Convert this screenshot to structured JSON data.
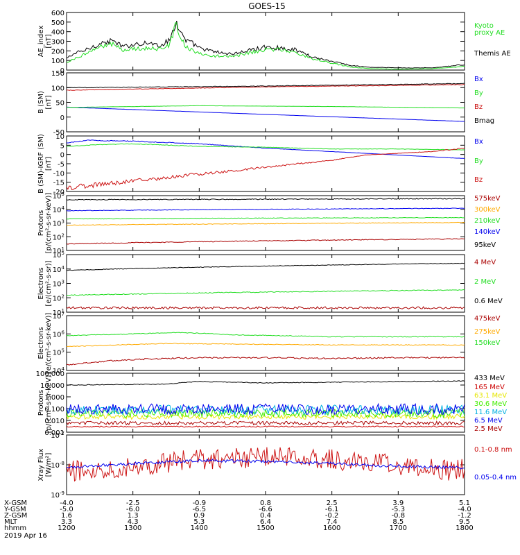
{
  "title": "GOES-15",
  "colors": {
    "black": "#000000",
    "green": "#22dd22",
    "blue": "#0000ee",
    "red": "#cc1111",
    "orange": "#ffaa00",
    "yellow": "#e6e600",
    "cyan": "#00b0e0",
    "lime": "#44ee00",
    "darkred": "#aa0000",
    "crimson": "#cc0000"
  },
  "footer": {
    "row_labels": [
      "X-GSM",
      "Y-GSM",
      "Z-GSM",
      "MLT",
      "hhmm"
    ],
    "date": "2019 Apr 16",
    "columns": [
      {
        "x_gsm": "-4.0",
        "y_gsm": "-5.0",
        "z_gsm": "1.6",
        "mlt": "3.3",
        "hhmm": "1200"
      },
      {
        "x_gsm": "-2.5",
        "y_gsm": "-6.0",
        "z_gsm": "1.3",
        "mlt": "4.3",
        "hhmm": "1300"
      },
      {
        "x_gsm": "-0.9",
        "y_gsm": "-6.5",
        "z_gsm": "0.9",
        "mlt": "5.3",
        "hhmm": "1400"
      },
      {
        "x_gsm": "0.8",
        "y_gsm": "-6.6",
        "z_gsm": "0.4",
        "mlt": "6.4",
        "hhmm": "1500"
      },
      {
        "x_gsm": "2.5",
        "y_gsm": "-6.1",
        "z_gsm": "-0.2",
        "mlt": "7.4",
        "hhmm": "1600"
      },
      {
        "x_gsm": "3.9",
        "y_gsm": "-5.3",
        "z_gsm": "-0.8",
        "mlt": "8.5",
        "hhmm": "1700"
      },
      {
        "x_gsm": "5.1",
        "y_gsm": "-4.0",
        "z_gsm": "-1.2",
        "mlt": "9.5",
        "hhmm": "1800"
      }
    ]
  },
  "chart_data": [
    {
      "type": "line",
      "ylabel": "AE_index [nT]",
      "ylim": [
        0,
        650
      ],
      "yscale": "linear",
      "yticks": [
        "0",
        "100",
        "200",
        "300",
        "400",
        "500",
        "600"
      ],
      "x_hours": [
        12,
        18
      ],
      "series": [
        {
          "name": "Themis AE",
          "color": "black",
          "noise": 0.1,
          "points": [
            [
              12.0,
              130
            ],
            [
              12.1,
              180
            ],
            [
              12.3,
              230
            ],
            [
              12.5,
              300
            ],
            [
              12.7,
              330
            ],
            [
              12.85,
              260
            ],
            [
              13.0,
              290
            ],
            [
              13.2,
              310
            ],
            [
              13.4,
              280
            ],
            [
              13.55,
              330
            ],
            [
              13.65,
              550
            ],
            [
              13.72,
              420
            ],
            [
              13.8,
              330
            ],
            [
              13.9,
              300
            ],
            [
              14.0,
              250
            ],
            [
              14.2,
              210
            ],
            [
              14.5,
              180
            ],
            [
              14.8,
              230
            ],
            [
              15.0,
              260
            ],
            [
              15.2,
              250
            ],
            [
              15.45,
              230
            ],
            [
              15.7,
              150
            ],
            [
              16.0,
              100
            ],
            [
              16.3,
              50
            ],
            [
              16.6,
              30
            ],
            [
              17.0,
              25
            ],
            [
              17.5,
              25
            ],
            [
              18.0,
              60
            ]
          ]
        },
        {
          "name": "Kyoto proxy AE",
          "color": "green",
          "noise": 0.1,
          "points": [
            [
              12.0,
              90
            ],
            [
              12.1,
              120
            ],
            [
              12.3,
              190
            ],
            [
              12.5,
              260
            ],
            [
              12.7,
              290
            ],
            [
              12.85,
              230
            ],
            [
              13.0,
              240
            ],
            [
              13.2,
              250
            ],
            [
              13.4,
              230
            ],
            [
              13.55,
              280
            ],
            [
              13.65,
              510
            ],
            [
              13.72,
              380
            ],
            [
              13.8,
              260
            ],
            [
              13.9,
              220
            ],
            [
              14.0,
              190
            ],
            [
              14.2,
              160
            ],
            [
              14.5,
              150
            ],
            [
              14.8,
              200
            ],
            [
              15.0,
              230
            ],
            [
              15.2,
              230
            ],
            [
              15.45,
              200
            ],
            [
              15.7,
              130
            ],
            [
              16.0,
              80
            ],
            [
              16.3,
              30
            ],
            [
              16.6,
              15
            ],
            [
              17.0,
              10
            ],
            [
              17.5,
              15
            ],
            [
              18.0,
              40
            ]
          ]
        }
      ]
    },
    {
      "type": "line",
      "ylabel": "B (SM) [nT]",
      "ylim": [
        -60,
        150
      ],
      "yscale": "linear",
      "yticks": [
        "-50",
        "0",
        "50",
        "100",
        "150"
      ],
      "x_hours": [
        12,
        18
      ],
      "series": [
        {
          "name": "Bx",
          "color": "blue",
          "noise": 0.01,
          "points": [
            [
              12.0,
              28
            ],
            [
              15.0,
              2
            ],
            [
              18.0,
              -23
            ]
          ]
        },
        {
          "name": "By",
          "color": "green",
          "noise": 0.01,
          "points": [
            [
              12.0,
              27
            ],
            [
              14.0,
              33
            ],
            [
              16.0,
              30
            ],
            [
              18.0,
              25
            ]
          ]
        },
        {
          "name": "Bz",
          "color": "red",
          "noise": 0.01,
          "points": [
            [
              12.0,
              88
            ],
            [
              15.0,
              100
            ],
            [
              18.0,
              108
            ]
          ]
        },
        {
          "name": "Bmag",
          "color": "black",
          "noise": 0.01,
          "points": [
            [
              12.0,
              97
            ],
            [
              15.0,
              103
            ],
            [
              18.0,
              112
            ]
          ]
        }
      ]
    },
    {
      "type": "line",
      "ylabel": "B (SM)-IGRF (SM) [nT]",
      "ylim": [
        -21,
        11
      ],
      "yscale": "linear",
      "yticks": [
        "-20",
        "-15",
        "-10",
        "-5",
        "0",
        "5",
        "10"
      ],
      "x_hours": [
        12,
        18
      ],
      "series": [
        {
          "name": "Bx",
          "color": "blue",
          "noise": 0.03,
          "points": [
            [
              12.0,
              7
            ],
            [
              12.3,
              8.5
            ],
            [
              13.0,
              8
            ],
            [
              14.0,
              6.5
            ],
            [
              15.0,
              4
            ],
            [
              16.0,
              2
            ],
            [
              17.0,
              0
            ],
            [
              18.0,
              -2
            ]
          ]
        },
        {
          "name": "By",
          "color": "green",
          "noise": 0.03,
          "points": [
            [
              12.0,
              5
            ],
            [
              12.5,
              6
            ],
            [
              13.0,
              6.5
            ],
            [
              14.0,
              5
            ],
            [
              15.0,
              4.5
            ],
            [
              16.0,
              3.5
            ],
            [
              17.0,
              3.5
            ],
            [
              18.0,
              3
            ]
          ]
        },
        {
          "name": "Bz",
          "color": "red",
          "noise": 0.08,
          "points": [
            [
              12.0,
              -19
            ],
            [
              12.5,
              -17
            ],
            [
              13.0,
              -15
            ],
            [
              14.0,
              -11
            ],
            [
              15.0,
              -7
            ],
            [
              16.0,
              -3
            ],
            [
              16.5,
              0
            ],
            [
              17.0,
              1
            ],
            [
              17.5,
              2
            ],
            [
              18.0,
              4
            ]
          ]
        }
      ]
    },
    {
      "type": "line",
      "ylabel": "Protons [p/(cm2-s-sr-keV)]",
      "ylim": [
        10,
        100000
      ],
      "yscale": "log",
      "yticks": [
        "10^1",
        "10^2",
        "10^3",
        "10^4",
        "10^5"
      ],
      "x_hours": [
        12,
        18
      ],
      "series": [
        {
          "name": "575keV",
          "color": "darkred",
          "noise": 0.03,
          "points": [
            [
              12.0,
              30
            ],
            [
              15.0,
              50
            ],
            [
              18.0,
              70
            ]
          ]
        },
        {
          "name": "300keV",
          "color": "orange",
          "noise": 0.02,
          "points": [
            [
              12.0,
              700
            ],
            [
              15.0,
              900
            ],
            [
              18.0,
              1100
            ]
          ]
        },
        {
          "name": "210keV",
          "color": "green",
          "noise": 0.02,
          "points": [
            [
              12.0,
              2000
            ],
            [
              15.0,
              2300
            ],
            [
              18.0,
              2500
            ]
          ]
        },
        {
          "name": "140keV",
          "color": "blue",
          "noise": 0.02,
          "points": [
            [
              12.0,
              8000
            ],
            [
              15.0,
              10000
            ],
            [
              18.0,
              12000
            ]
          ]
        },
        {
          "name": "95keV",
          "color": "black",
          "noise": 0.03,
          "points": [
            [
              12.0,
              50000
            ],
            [
              15.0,
              55000
            ],
            [
              18.0,
              60000
            ]
          ]
        }
      ]
    },
    {
      "type": "line",
      "ylabel": "Electrons [e/(cm2-s-sr)]",
      "ylim": [
        10,
        100000
      ],
      "yscale": "log",
      "yticks": [
        "10^1",
        "10^2",
        "10^3",
        "10^4",
        "10^5"
      ],
      "x_hours": [
        12,
        18
      ],
      "series": [
        {
          "name": "4 MeV",
          "color": "darkred",
          "noise": 0.08,
          "points": [
            [
              12.0,
              20
            ],
            [
              18.0,
              20
            ]
          ]
        },
        {
          "name": "2 MeV",
          "color": "green",
          "noise": 0.03,
          "points": [
            [
              12.0,
              150
            ],
            [
              15.0,
              250
            ],
            [
              18.0,
              350
            ]
          ]
        },
        {
          "name": "0.6 MeV",
          "color": "black",
          "noise": 0.02,
          "points": [
            [
              12.0,
              8000
            ],
            [
              15.0,
              16000
            ],
            [
              18.0,
              25000
            ]
          ]
        }
      ]
    },
    {
      "type": "line",
      "ylabel": "Electrons [e/(cm2-s-sr-keV)]",
      "ylim": [
        10000,
        10000000
      ],
      "yscale": "log",
      "yticks": [
        "10^4",
        "10^5",
        "10^6",
        "10^7"
      ],
      "x_hours": [
        12,
        18
      ],
      "series": [
        {
          "name": "475keV",
          "color": "darkred",
          "noise": 0.04,
          "points": [
            [
              12.0,
              20000
            ],
            [
              12.5,
              30000
            ],
            [
              13.0,
              40000
            ],
            [
              14.0,
              50000
            ],
            [
              15.0,
              50000
            ],
            [
              16.0,
              45000
            ],
            [
              17.0,
              50000
            ],
            [
              18.0,
              50000
            ]
          ]
        },
        {
          "name": "275keV",
          "color": "orange",
          "noise": 0.02,
          "points": [
            [
              12.0,
              200000
            ],
            [
              13.5,
              300000
            ],
            [
              14.5,
              280000
            ],
            [
              16.0,
              250000
            ],
            [
              17.0,
              250000
            ],
            [
              18.0,
              250000
            ]
          ]
        },
        {
          "name": "150keV",
          "color": "green",
          "noise": 0.02,
          "points": [
            [
              12.0,
              800000
            ],
            [
              13.0,
              1000000
            ],
            [
              13.7,
              1200000
            ],
            [
              14.5,
              900000
            ],
            [
              16.0,
              700000
            ],
            [
              17.0,
              700000
            ],
            [
              18.0,
              700000
            ]
          ]
        }
      ]
    },
    {
      "type": "line",
      "ylabel": "Protons [p/(cm2-s-sr-keV)]",
      "ylim": [
        0.001,
        100
      ],
      "yscale": "log",
      "yticks": [
        "0.001",
        "0.010",
        "0.100",
        "1.000",
        "10.000",
        "100.000"
      ],
      "x_hours": [
        12,
        18
      ],
      "series": [
        {
          "name": "433 MeV",
          "color": "black",
          "noise": 0.03,
          "points": [
            [
              12.0,
              10
            ],
            [
              13.5,
              12
            ],
            [
              14.0,
              20
            ],
            [
              15.0,
              15
            ],
            [
              18.0,
              22
            ]
          ]
        },
        {
          "name": "165 MeV",
          "color": "crimson",
          "noise": 0.05,
          "points": [
            [
              12.0,
              0.003
            ],
            [
              18.0,
              0.003
            ]
          ]
        },
        {
          "name": "63.1 MeV",
          "color": "yellow",
          "noise": 0.2,
          "points": [
            [
              12.0,
              0.02
            ],
            [
              18.0,
              0.02
            ]
          ]
        },
        {
          "name": "30.6 MeV",
          "color": "lime",
          "noise": 0.35,
          "points": [
            [
              12.0,
              0.04
            ],
            [
              18.0,
              0.04
            ]
          ]
        },
        {
          "name": "11.6 MeV",
          "color": "cyan",
          "noise": 0.4,
          "points": [
            [
              12.0,
              0.08
            ],
            [
              18.0,
              0.08
            ]
          ]
        },
        {
          "name": "6.5 MeV",
          "color": "blue",
          "noise": 0.45,
          "points": [
            [
              12.0,
              0.09
            ],
            [
              18.0,
              0.09
            ]
          ]
        },
        {
          "name": "2.5 MeV",
          "color": "darkred",
          "noise": 0.15,
          "points": [
            [
              12.0,
              0.006
            ],
            [
              18.0,
              0.006
            ]
          ]
        }
      ]
    },
    {
      "type": "line",
      "ylabel": "Xray Flux [W/m2]",
      "ylim": [
        1e-09,
        1e-07
      ],
      "yscale": "log",
      "yticks": [
        "10^-9",
        "10^-8",
        "10^-7"
      ],
      "x_hours": [
        12,
        18
      ],
      "series": [
        {
          "name": "0.1-0.8 nm",
          "color": "red",
          "noise": 0.35,
          "points": [
            [
              12.0,
              6e-09
            ],
            [
              12.5,
              7e-09
            ],
            [
              13.0,
              9e-09
            ],
            [
              13.5,
              1.2e-08
            ],
            [
              14.0,
              1.5e-08
            ],
            [
              15.0,
              1.8e-08
            ],
            [
              15.5,
              2e-08
            ],
            [
              16.0,
              1.5e-08
            ],
            [
              16.5,
              1.2e-08
            ],
            [
              17.0,
              1e-08
            ],
            [
              17.5,
              8e-09
            ],
            [
              17.8,
              6e-09
            ],
            [
              18.0,
              8e-09
            ]
          ]
        },
        {
          "name": "0.05-0.4 nm",
          "color": "blue",
          "noise": 0.05,
          "points": [
            [
              12.0,
              8e-09
            ],
            [
              13.0,
              1.1e-08
            ],
            [
              14.0,
              1.4e-08
            ],
            [
              15.0,
              1.3e-08
            ],
            [
              16.0,
              1.1e-08
            ],
            [
              17.0,
              9e-09
            ],
            [
              18.0,
              8e-09
            ]
          ]
        }
      ]
    }
  ]
}
